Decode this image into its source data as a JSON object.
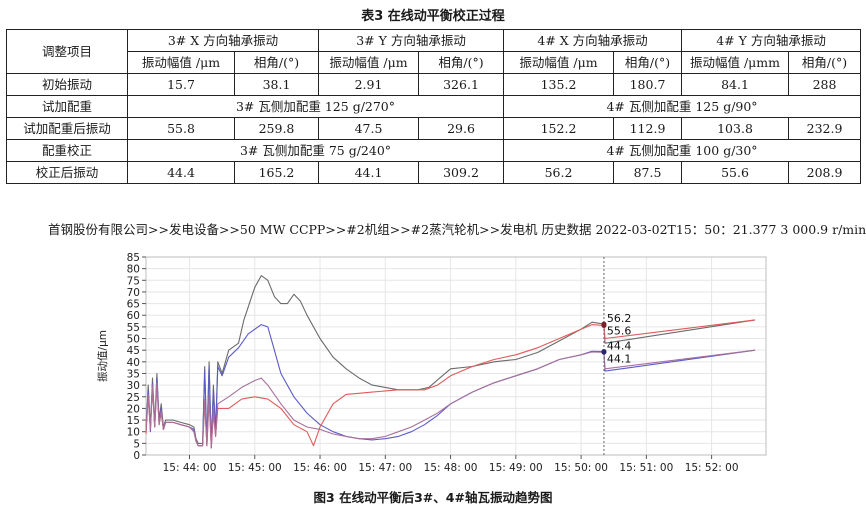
{
  "table": {
    "caption": "表3   在线动平衡校正过程",
    "header": {
      "item": "调整项目",
      "groups": [
        "3# X 方向轴承振动",
        "3# Y 方向轴承振动",
        "4# X 方向轴承振动",
        "4# Y 方向轴承振动"
      ],
      "subcols": [
        "振动幅值 /μm",
        "相角/(°)",
        "振动幅值 /μm",
        "相角/(°)",
        "振动幅值 /μm",
        "相角/(°)",
        "振动幅值 /μmm",
        "相角/(°)"
      ]
    },
    "rows": {
      "initial": {
        "label": "初始振动",
        "values": [
          "15.7",
          "38.1",
          "2.91",
          "326.1",
          "135.2",
          "180.7",
          "84.1",
          "288"
        ]
      },
      "trial_weight": {
        "label": "试加配重",
        "left": "3# 瓦侧加配重 125 g/270°",
        "right": "4# 瓦侧加配重 125 g/90°"
      },
      "after_trial": {
        "label": "试加配重后振动",
        "values": [
          "55.8",
          "259.8",
          "47.5",
          "29.6",
          "152.2",
          "112.9",
          "103.8",
          "232.9"
        ]
      },
      "correction": {
        "label": "配重校正",
        "left": "3# 瓦侧加配重 75 g/240°",
        "right": "4# 瓦侧加配重 100 g/30°"
      },
      "after_correction": {
        "label": "校正后振动",
        "values": [
          "44.4",
          "165.2",
          "44.1",
          "309.2",
          "56.2",
          "87.5",
          "55.6",
          "208.9"
        ]
      }
    }
  },
  "source_line": "首钢股份有限公司>>发电设备>>50 MW CCPP>>#2机组>>#2蒸汽轮机>>发电机    历史数据 2022-03-02T15：50：21.377  3 000.9 r/min",
  "figure_caption": "图3   在线动平衡后3#、4#轴瓦振动趋势图",
  "chart_data": {
    "type": "line",
    "ylabel": "振动值/μm",
    "ylim": [
      0,
      85
    ],
    "yticks": [
      0,
      5,
      10,
      15,
      20,
      25,
      30,
      35,
      40,
      45,
      50,
      55,
      60,
      65,
      70,
      75,
      80,
      85
    ],
    "xlim": [
      "15:43:20",
      "15:52:50"
    ],
    "xticks": [
      "15: 44: 00",
      "15: 45: 00",
      "15: 46: 00",
      "15: 47: 00",
      "15: 48: 00",
      "15: 49: 00",
      "15: 50: 00",
      "15: 51: 00",
      "15: 52: 00"
    ],
    "grid": true,
    "cursor_time": "15:50:21",
    "annotations": [
      "56.2",
      "55.6",
      "44.4",
      "44.1"
    ],
    "series": [
      {
        "color": "#6b6b6b",
        "points": [
          [
            "15:43:20",
            10
          ],
          [
            "15:43:22",
            30
          ],
          [
            "15:43:24",
            12
          ],
          [
            "15:43:26",
            33
          ],
          [
            "15:43:28",
            13
          ],
          [
            "15:43:30",
            35
          ],
          [
            "15:43:32",
            15
          ],
          [
            "15:43:34",
            22
          ],
          [
            "15:43:36",
            12
          ],
          [
            "15:43:38",
            15
          ],
          [
            "15:43:45",
            15
          ],
          [
            "15:43:52",
            14
          ],
          [
            "15:44:00",
            13
          ],
          [
            "15:44:04",
            12
          ],
          [
            "15:44:06",
            7
          ],
          [
            "15:44:08",
            5
          ],
          [
            "15:44:12",
            5
          ],
          [
            "15:44:14",
            38
          ],
          [
            "15:44:16",
            5
          ],
          [
            "15:44:18",
            40
          ],
          [
            "15:44:20",
            4
          ],
          [
            "15:44:22",
            30
          ],
          [
            "15:44:24",
            10
          ],
          [
            "15:44:26",
            40
          ],
          [
            "15:44:30",
            35
          ],
          [
            "15:44:36",
            45
          ],
          [
            "15:44:45",
            48
          ],
          [
            "15:44:50",
            58
          ],
          [
            "15:45:00",
            72
          ],
          [
            "15:45:06",
            77
          ],
          [
            "15:45:12",
            75
          ],
          [
            "15:45:18",
            68
          ],
          [
            "15:45:24",
            65
          ],
          [
            "15:45:30",
            65
          ],
          [
            "15:45:36",
            69
          ],
          [
            "15:45:42",
            66
          ],
          [
            "15:45:48",
            60
          ],
          [
            "15:46:00",
            50
          ],
          [
            "15:46:12",
            42
          ],
          [
            "15:46:24",
            37
          ],
          [
            "15:46:36",
            33
          ],
          [
            "15:46:48",
            30
          ],
          [
            "15:47:00",
            29
          ],
          [
            "15:47:12",
            28
          ],
          [
            "15:47:30",
            28
          ],
          [
            "15:47:40",
            29
          ],
          [
            "15:47:50",
            33
          ],
          [
            "15:48:00",
            37
          ],
          [
            "15:48:20",
            38
          ],
          [
            "15:48:40",
            40
          ],
          [
            "15:49:00",
            41
          ],
          [
            "15:49:20",
            44
          ],
          [
            "15:49:40",
            49
          ],
          [
            "15:50:00",
            54
          ],
          [
            "15:50:10",
            57
          ],
          [
            "15:50:21",
            56.2
          ],
          [
            "15:50:22",
            48
          ],
          [
            "15:52:40",
            58
          ]
        ]
      },
      {
        "color": "#5b5bc8",
        "points": [
          [
            "15:43:20",
            11
          ],
          [
            "15:43:22",
            28
          ],
          [
            "15:43:24",
            10
          ],
          [
            "15:43:26",
            31
          ],
          [
            "15:43:28",
            12
          ],
          [
            "15:43:30",
            33
          ],
          [
            "15:43:32",
            14
          ],
          [
            "15:43:34",
            20
          ],
          [
            "15:43:36",
            11
          ],
          [
            "15:43:38",
            14
          ],
          [
            "15:43:45",
            14
          ],
          [
            "15:43:52",
            13
          ],
          [
            "15:44:00",
            12
          ],
          [
            "15:44:04",
            11
          ],
          [
            "15:44:06",
            6
          ],
          [
            "15:44:08",
            4
          ],
          [
            "15:44:12",
            4
          ],
          [
            "15:44:14",
            36
          ],
          [
            "15:44:16",
            4
          ],
          [
            "15:44:18",
            38
          ],
          [
            "15:44:20",
            3
          ],
          [
            "15:44:22",
            28
          ],
          [
            "15:44:24",
            9
          ],
          [
            "15:44:26",
            38
          ],
          [
            "15:44:30",
            34
          ],
          [
            "15:44:36",
            42
          ],
          [
            "15:44:45",
            46
          ],
          [
            "15:44:54",
            52
          ],
          [
            "15:45:06",
            56
          ],
          [
            "15:45:12",
            55
          ],
          [
            "15:45:18",
            45
          ],
          [
            "15:45:24",
            35
          ],
          [
            "15:45:36",
            25
          ],
          [
            "15:45:48",
            18
          ],
          [
            "15:46:00",
            13
          ],
          [
            "15:46:12",
            10
          ],
          [
            "15:46:24",
            8
          ],
          [
            "15:46:36",
            7
          ],
          [
            "15:46:48",
            6.5
          ],
          [
            "15:47:00",
            7
          ],
          [
            "15:47:12",
            8
          ],
          [
            "15:47:24",
            10
          ],
          [
            "15:47:36",
            13
          ],
          [
            "15:47:48",
            17
          ],
          [
            "15:48:00",
            22
          ],
          [
            "15:48:20",
            27
          ],
          [
            "15:48:40",
            31
          ],
          [
            "15:49:00",
            34
          ],
          [
            "15:49:20",
            37
          ],
          [
            "15:49:40",
            41
          ],
          [
            "15:50:00",
            43
          ],
          [
            "15:50:10",
            44.5
          ],
          [
            "15:50:21",
            44.4
          ],
          [
            "15:50:22",
            36
          ],
          [
            "15:52:40",
            45
          ]
        ]
      },
      {
        "color": "#e05a5a",
        "points": [
          [
            "15:43:20",
            9
          ],
          [
            "15:43:22",
            25
          ],
          [
            "15:43:24",
            11
          ],
          [
            "15:43:26",
            29
          ],
          [
            "15:43:28",
            12
          ],
          [
            "15:43:30",
            30
          ],
          [
            "15:43:32",
            13
          ],
          [
            "15:43:34",
            18
          ],
          [
            "15:43:36",
            11
          ],
          [
            "15:43:38",
            14
          ],
          [
            "15:43:45",
            14
          ],
          [
            "15:43:52",
            13
          ],
          [
            "15:44:00",
            12
          ],
          [
            "15:44:04",
            10
          ],
          [
            "15:44:06",
            6
          ],
          [
            "15:44:08",
            4
          ],
          [
            "15:44:12",
            4
          ],
          [
            "15:44:14",
            22
          ],
          [
            "15:44:16",
            4
          ],
          [
            "15:44:18",
            24
          ],
          [
            "15:44:20",
            3
          ],
          [
            "15:44:22",
            18
          ],
          [
            "15:44:24",
            8
          ],
          [
            "15:44:26",
            20
          ],
          [
            "15:44:36",
            20
          ],
          [
            "15:44:48",
            24
          ],
          [
            "15:45:00",
            25
          ],
          [
            "15:45:12",
            24
          ],
          [
            "15:45:24",
            20
          ],
          [
            "15:45:36",
            13
          ],
          [
            "15:45:48",
            10
          ],
          [
            "15:45:54",
            4
          ],
          [
            "15:46:00",
            12
          ],
          [
            "15:46:12",
            22
          ],
          [
            "15:46:24",
            26
          ],
          [
            "15:46:48",
            27
          ],
          [
            "15:47:12",
            28
          ],
          [
            "15:47:36",
            28
          ],
          [
            "15:47:48",
            30
          ],
          [
            "15:48:00",
            34
          ],
          [
            "15:48:20",
            38
          ],
          [
            "15:48:40",
            41
          ],
          [
            "15:49:00",
            43
          ],
          [
            "15:49:20",
            46
          ],
          [
            "15:49:40",
            50
          ],
          [
            "15:50:00",
            54
          ],
          [
            "15:50:10",
            56
          ],
          [
            "15:50:21",
            55.6
          ],
          [
            "15:50:22",
            50
          ],
          [
            "15:52:40",
            58
          ]
        ]
      },
      {
        "color": "#a8709b",
        "points": [
          [
            "15:43:20",
            10
          ],
          [
            "15:43:22",
            26
          ],
          [
            "15:43:24",
            11
          ],
          [
            "15:43:26",
            30
          ],
          [
            "15:43:28",
            12
          ],
          [
            "15:43:30",
            31
          ],
          [
            "15:43:32",
            13
          ],
          [
            "15:43:34",
            19
          ],
          [
            "15:43:36",
            11
          ],
          [
            "15:43:38",
            14
          ],
          [
            "15:43:45",
            14
          ],
          [
            "15:43:52",
            13
          ],
          [
            "15:44:00",
            12
          ],
          [
            "15:44:04",
            10
          ],
          [
            "15:44:06",
            6
          ],
          [
            "15:44:08",
            4
          ],
          [
            "15:44:12",
            4
          ],
          [
            "15:44:14",
            24
          ],
          [
            "15:44:16",
            4
          ],
          [
            "15:44:18",
            26
          ],
          [
            "15:44:20",
            3
          ],
          [
            "15:44:22",
            20
          ],
          [
            "15:44:24",
            8
          ],
          [
            "15:44:26",
            22
          ],
          [
            "15:44:36",
            25
          ],
          [
            "15:44:48",
            29
          ],
          [
            "15:45:00",
            32
          ],
          [
            "15:45:06",
            33
          ],
          [
            "15:45:12",
            30
          ],
          [
            "15:45:24",
            22
          ],
          [
            "15:45:36",
            15
          ],
          [
            "15:45:48",
            12
          ],
          [
            "15:46:00",
            11
          ],
          [
            "15:46:12",
            9
          ],
          [
            "15:46:24",
            8
          ],
          [
            "15:46:36",
            7
          ],
          [
            "15:46:48",
            7
          ],
          [
            "15:47:00",
            8
          ],
          [
            "15:47:12",
            10
          ],
          [
            "15:47:24",
            12
          ],
          [
            "15:47:36",
            15
          ],
          [
            "15:47:48",
            18
          ],
          [
            "15:48:00",
            22
          ],
          [
            "15:48:20",
            27
          ],
          [
            "15:48:40",
            31
          ],
          [
            "15:49:00",
            34
          ],
          [
            "15:49:20",
            37
          ],
          [
            "15:49:40",
            41
          ],
          [
            "15:50:00",
            43
          ],
          [
            "15:50:10",
            44.2
          ],
          [
            "15:50:21",
            44.1
          ],
          [
            "15:50:22",
            37
          ],
          [
            "15:52:40",
            45
          ]
        ]
      }
    ]
  }
}
